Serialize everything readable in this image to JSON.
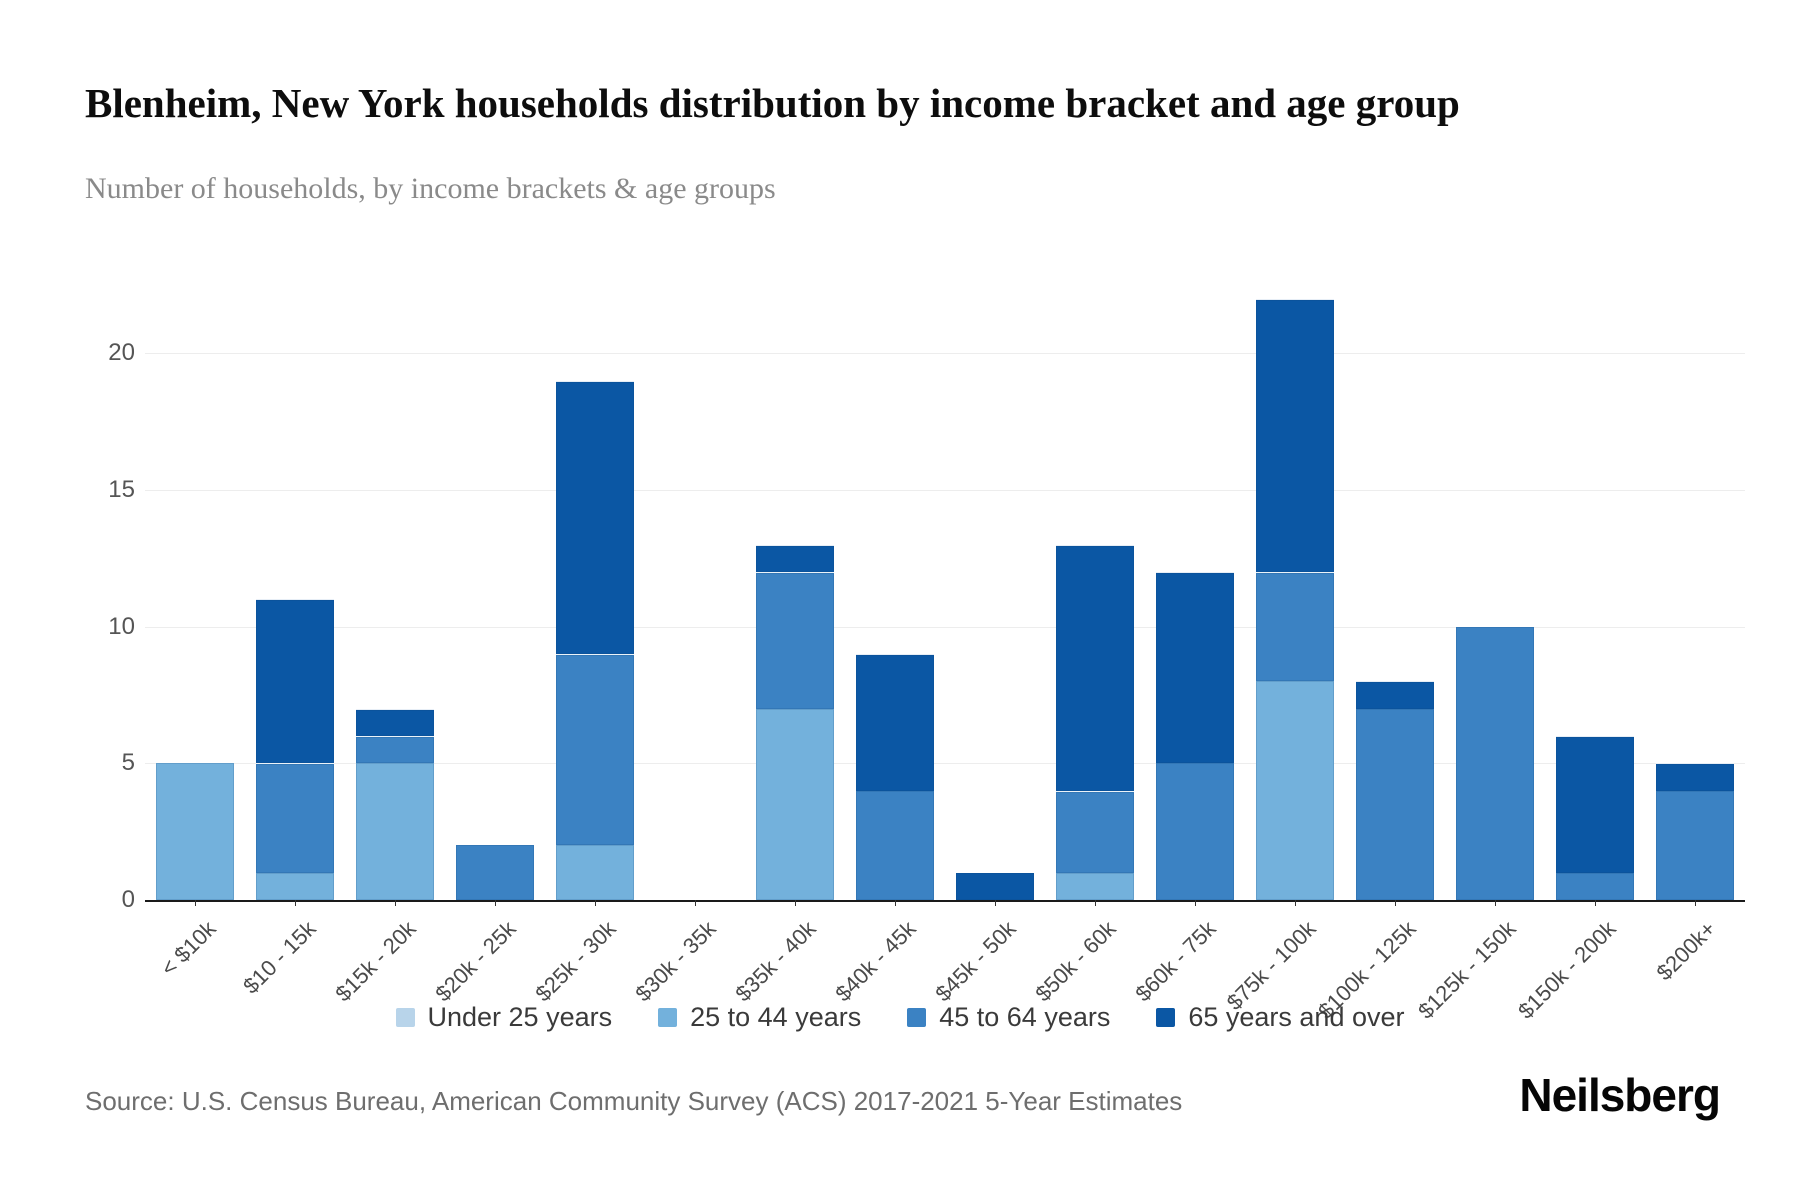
{
  "title": "Blenheim, New York households distribution by income bracket and age group",
  "subtitle": "Number of households, by income brackets & age groups",
  "source": "Source: U.S. Census Bureau, American Community Survey (ACS) 2017-2021 5-Year Estimates",
  "brand": "Neilsberg",
  "chart_data": {
    "type": "bar",
    "stacked": true,
    "title": "Blenheim, New York households distribution by income bracket and age group",
    "subtitle": "Number of households, by income brackets & age groups",
    "xlabel": "",
    "ylabel": "Number of households",
    "categories": [
      "< $10k",
      "$10 - 15k",
      "$15k - 20k",
      "$20k - 25k",
      "$25k - 30k",
      "$30k - 35k",
      "$35k - 40k",
      "$40k - 45k",
      "$45k - 50k",
      "$50k - 60k",
      "$60k - 75k",
      "$75k - 100k",
      "$100k - 125k",
      "$125k - 150k",
      "$150k - 200k",
      "$200k+"
    ],
    "series": [
      {
        "name": "Under 25 years",
        "color": "#b8d4ea",
        "values": [
          0,
          0,
          0,
          0,
          0,
          0,
          0,
          0,
          0,
          0,
          0,
          0,
          0,
          0,
          0,
          0
        ]
      },
      {
        "name": "25 to 44 years",
        "color": "#73b1dc",
        "values": [
          5,
          1,
          5,
          0,
          2,
          0,
          7,
          0,
          0,
          1,
          0,
          8,
          0,
          0,
          0,
          0
        ]
      },
      {
        "name": "45 to 64 years",
        "color": "#3b82c3",
        "values": [
          0,
          4,
          1,
          2,
          7,
          0,
          5,
          4,
          0,
          3,
          5,
          4,
          7,
          10,
          1,
          4
        ]
      },
      {
        "name": "65 years and over",
        "color": "#0b57a4",
        "values": [
          0,
          6,
          1,
          0,
          10,
          0,
          1,
          5,
          1,
          9,
          7,
          10,
          1,
          0,
          5,
          1
        ]
      }
    ],
    "totals": [
      5,
      11,
      7,
      2,
      19,
      0,
      13,
      9,
      1,
      13,
      12,
      22,
      8,
      10,
      6,
      5
    ],
    "ylim": [
      0,
      23.6
    ],
    "yticks": [
      0,
      5,
      10,
      15,
      20
    ],
    "grid": true,
    "legend_position": "bottom",
    "bar_colors_legend": {
      "under_25": "#b8d4ea",
      "25_to_44": "#73b1dc",
      "45_to_64": "#3b82c3",
      "65_and_over": "#0b57a4"
    }
  }
}
